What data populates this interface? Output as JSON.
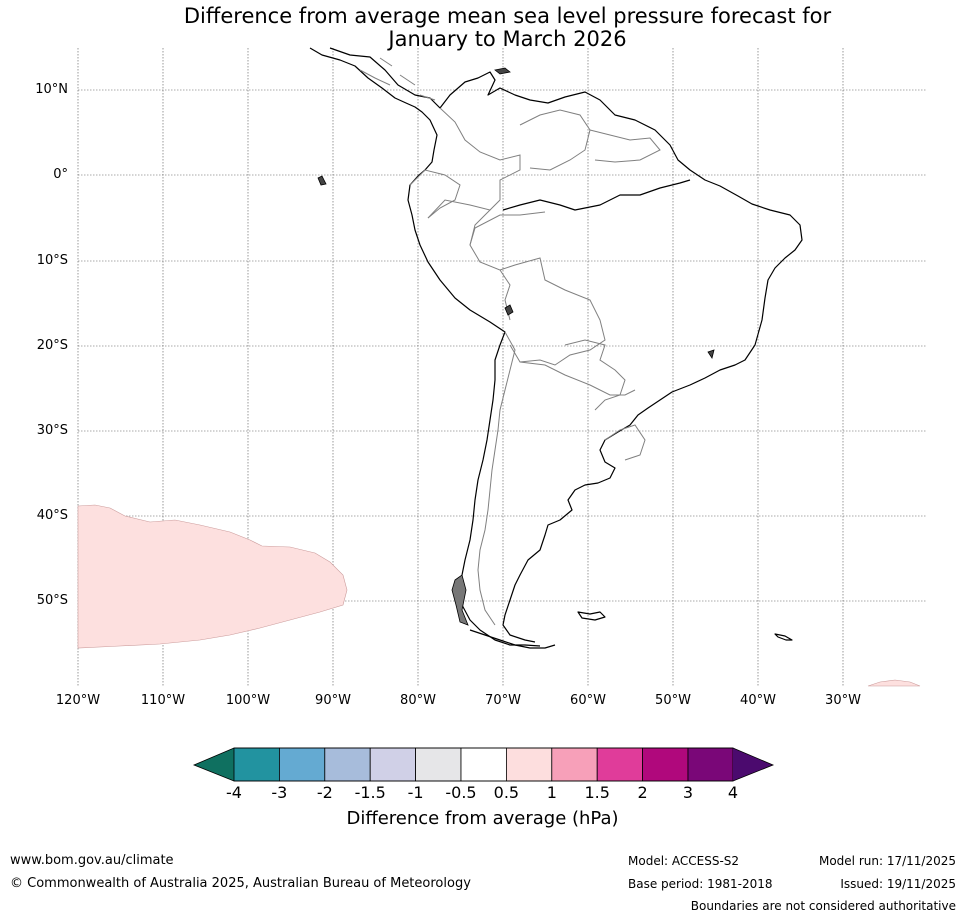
{
  "title": {
    "line1": "Difference from average mean sea level pressure forecast for",
    "line2": "January to March 2026"
  },
  "lat_labels": [
    "10°N",
    "0°",
    "10°S",
    "20°S",
    "30°S",
    "40°S",
    "50°S"
  ],
  "lon_labels": [
    "120°W",
    "110°W",
    "100°W",
    "90°W",
    "80°W",
    "70°W",
    "60°W",
    "50°W",
    "40°W",
    "30°W"
  ],
  "colorbar": {
    "title": "Difference from average (hPa)",
    "ticks": [
      "-4",
      "-3",
      "-2",
      "-1.5",
      "-1",
      "-0.5",
      "0.5",
      "1",
      "1.5",
      "2",
      "3",
      "4"
    ],
    "colors": [
      "#0f7060",
      "#2293a0",
      "#64aad2",
      "#a7bcdb",
      "#d0d0e7",
      "#e6e6e8",
      "#ffffff",
      "#fddede",
      "#f7a0b9",
      "#e03c9a",
      "#b0087c",
      "#7a0778",
      "#4b0a6e"
    ]
  },
  "anomaly_colors": {
    "positive_weak": "#fde0df",
    "outline": "#cc9c9c"
  },
  "footer": {
    "website": "www.bom.gov.au/climate",
    "copyright": "© Commonwealth of Australia 2025, Australian Bureau of Meteorology",
    "model": "Model: ACCESS-S2",
    "base_period": "Base period: 1981-2018",
    "model_run": "Model run: 17/11/2025",
    "issued": "Issued: 19/11/2025",
    "boundaries": "Boundaries are not considered authoritative"
  }
}
